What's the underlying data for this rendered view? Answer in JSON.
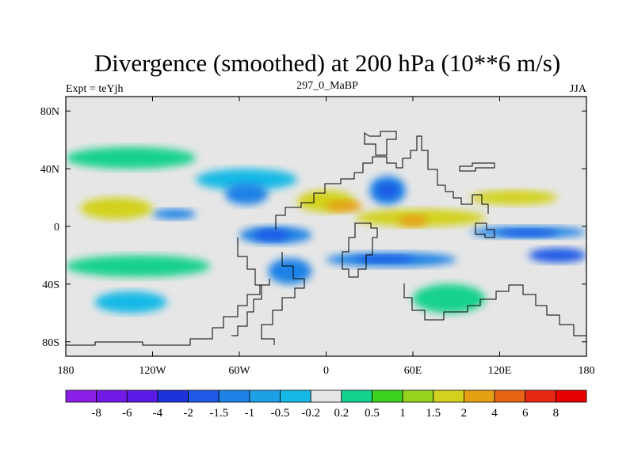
{
  "chart_data": {
    "type": "heatmap",
    "title": "Divergence (smoothed) at 200 hPa (10**6 m/s)",
    "subtitle_left": "Expt = teYjh",
    "subtitle_center": "297_0_MaBP",
    "subtitle_right": "JJA",
    "x_range": [
      -180,
      180
    ],
    "y_range": [
      -90,
      90
    ],
    "x_ticks": [
      {
        "value": -180,
        "label": "180"
      },
      {
        "value": -120,
        "label": "120W"
      },
      {
        "value": -60,
        "label": "60W"
      },
      {
        "value": 0,
        "label": "0"
      },
      {
        "value": 60,
        "label": "60E"
      },
      {
        "value": 120,
        "label": "120E"
      },
      {
        "value": 180,
        "label": "180"
      }
    ],
    "y_ticks": [
      {
        "value": 80,
        "label": "80N"
      },
      {
        "value": 40,
        "label": "40N"
      },
      {
        "value": 0,
        "label": "0"
      },
      {
        "value": -40,
        "label": "40S"
      },
      {
        "value": -80,
        "label": "80S"
      }
    ],
    "colorbar": {
      "labels": [
        "-8",
        "-6",
        "-4",
        "-2",
        "-1.5",
        "-1",
        "-0.5",
        "-0.2",
        "0.2",
        "0.5",
        "1",
        "1.5",
        "2",
        "4",
        "6",
        "8"
      ],
      "colors": [
        "#8b1ee6",
        "#7319e6",
        "#5a19e6",
        "#1e32dc",
        "#1e5ae6",
        "#1e82e6",
        "#1ea0e6",
        "#14b9e6",
        "#e6e6e6",
        "#14d28c",
        "#3cd21e",
        "#96d21e",
        "#d2d21e",
        "#e6a014",
        "#e66414",
        "#e62814",
        "#e60000"
      ]
    },
    "fields": [
      {
        "level": "-1.5",
        "lon": [
          -120,
          -90
        ],
        "lat": [
          5,
          12
        ]
      },
      {
        "level": "-1.5",
        "lon": [
          -70,
          -40
        ],
        "lat": [
          15,
          30
        ]
      },
      {
        "level": "-1.5",
        "lon": [
          -60,
          -10
        ],
        "lat": [
          -12,
          0
        ]
      },
      {
        "level": "-1.5",
        "lon": [
          -40,
          -10
        ],
        "lat": [
          -40,
          -22
        ]
      },
      {
        "level": "-1.5",
        "lon": [
          30,
          55
        ],
        "lat": [
          15,
          35
        ]
      },
      {
        "level": "-1.5",
        "lon": [
          0,
          90
        ],
        "lat": [
          -28,
          -18
        ]
      },
      {
        "level": "-1.5",
        "lon": [
          100,
          180
        ],
        "lat": [
          -8,
          0
        ]
      },
      {
        "level": "-2",
        "lon": [
          -50,
          -25
        ],
        "lat": [
          -10,
          -2
        ]
      },
      {
        "level": "-2",
        "lon": [
          35,
          50
        ],
        "lat": [
          20,
          30
        ]
      },
      {
        "level": "-2",
        "lon": [
          20,
          60
        ],
        "lat": [
          -25,
          -20
        ]
      },
      {
        "level": "-2",
        "lon": [
          120,
          160
        ],
        "lat": [
          -7,
          -2
        ]
      },
      {
        "level": "-2",
        "lon": [
          140,
          180
        ],
        "lat": [
          -25,
          -15
        ]
      },
      {
        "level": "2",
        "lon": [
          -170,
          -120
        ],
        "lat": [
          5,
          20
        ]
      },
      {
        "level": "2",
        "lon": [
          -20,
          20
        ],
        "lat": [
          10,
          25
        ]
      },
      {
        "level": "2",
        "lon": [
          20,
          110
        ],
        "lat": [
          0,
          12
        ]
      },
      {
        "level": "2",
        "lon": [
          100,
          160
        ],
        "lat": [
          15,
          25
        ]
      },
      {
        "level": "4",
        "lon": [
          50,
          70
        ],
        "lat": [
          0,
          8
        ]
      },
      {
        "level": "4",
        "lon": [
          0,
          25
        ],
        "lat": [
          10,
          18
        ]
      },
      {
        "level": "0.5",
        "lon": [
          -180,
          -90
        ],
        "lat": [
          40,
          55
        ]
      },
      {
        "level": "0.5",
        "lon": [
          -180,
          -80
        ],
        "lat": [
          -35,
          -20
        ]
      },
      {
        "level": "0.5",
        "lon": [
          60,
          110
        ],
        "lat": [
          -60,
          -40
        ]
      },
      {
        "level": "-0.5",
        "lon": [
          -90,
          -20
        ],
        "lat": [
          25,
          40
        ]
      },
      {
        "level": "-0.5",
        "lon": [
          -160,
          -110
        ],
        "lat": [
          -60,
          -45
        ]
      }
    ]
  }
}
